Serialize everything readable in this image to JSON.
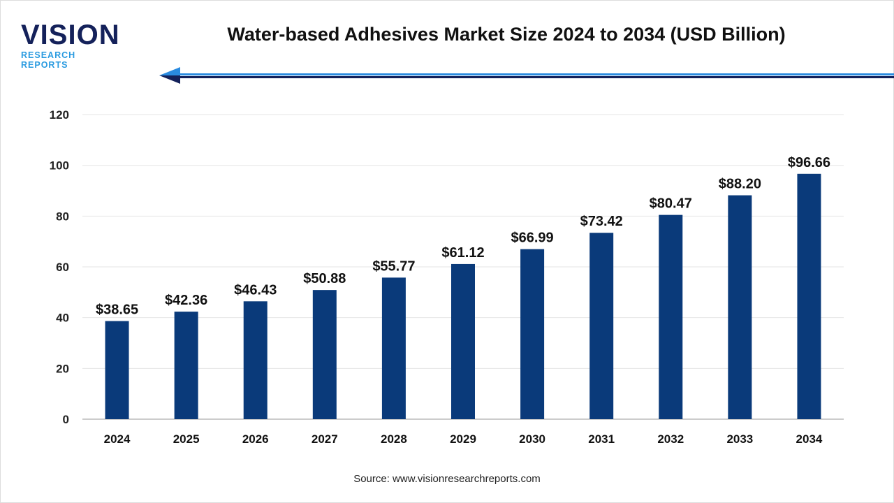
{
  "logo": {
    "word": "VISION",
    "sub": "RESEARCH REPORTS"
  },
  "source": "Source: www.visionresearchreports.com",
  "colors": {
    "bar": "#0a3a7a",
    "accent": "#2a8be0",
    "logo_dark": "#14215a"
  },
  "chart_data": {
    "type": "bar",
    "title": "Water-based Adhesives Market Size 2024 to 2034 (USD Billion)",
    "categories": [
      "2024",
      "2025",
      "2026",
      "2027",
      "2028",
      "2029",
      "2030",
      "2031",
      "2032",
      "2033",
      "2034"
    ],
    "values": [
      38.65,
      42.36,
      46.43,
      50.88,
      55.77,
      61.12,
      66.99,
      73.42,
      80.47,
      88.2,
      96.66
    ],
    "data_labels": [
      "$38.65",
      "$42.36",
      "$46.43",
      "$50.88",
      "$55.77",
      "$61.12",
      "$66.99",
      "$73.42",
      "$80.47",
      "$88.20",
      "$96.66"
    ],
    "yticks": [
      0,
      20,
      40,
      60,
      80,
      100,
      120
    ],
    "ylim": [
      0,
      120
    ],
    "grid": true,
    "xlabel": "",
    "ylabel": ""
  }
}
